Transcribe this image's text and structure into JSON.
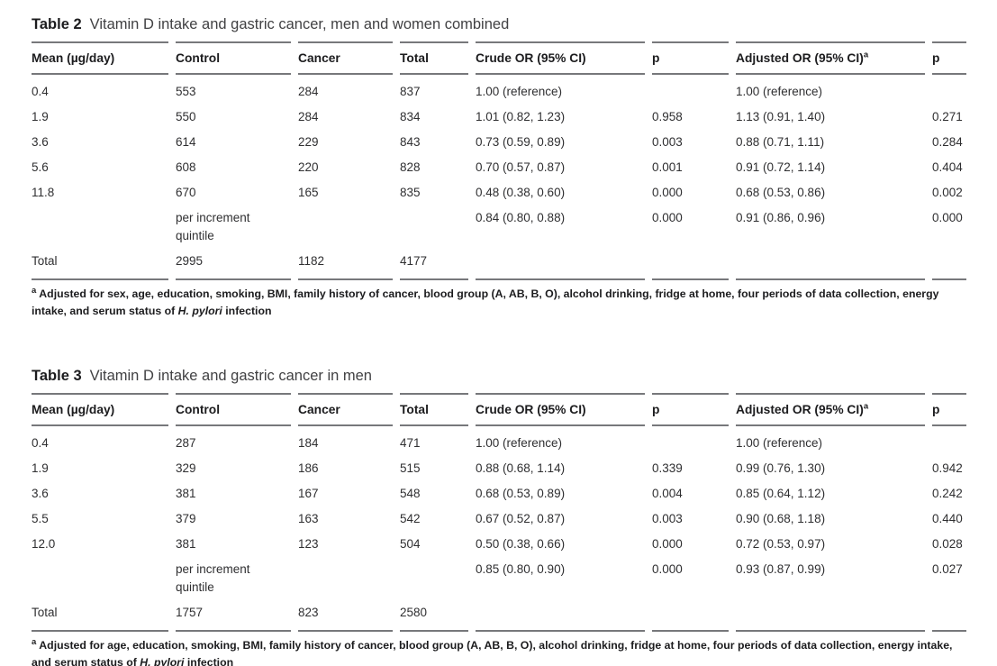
{
  "page": {
    "background": "#ffffff",
    "text_color": "#2f2f31",
    "rule_color": "#77787b"
  },
  "tables": [
    {
      "label": "Table 2",
      "caption": "Vitamin D intake and gastric cancer, men and women combined",
      "columns": [
        "Mean (µg/day)",
        "Control",
        "Cancer",
        "Total",
        "Crude OR (95% CI)",
        "p",
        "Adjusted OR (95% CI)",
        "p"
      ],
      "adjusted_or_superscript": "a",
      "rows": [
        [
          "0.4",
          "553",
          "284",
          "837",
          "1.00 (reference)",
          "",
          "1.00 (reference)",
          ""
        ],
        [
          "1.9",
          "550",
          "284",
          "834",
          "1.01 (0.82, 1.23)",
          "0.958",
          "1.13 (0.91, 1.40)",
          "0.271"
        ],
        [
          "3.6",
          "614",
          "229",
          "843",
          "0.73 (0.59, 0.89)",
          "0.003",
          "0.88 (0.71, 1.11)",
          "0.284"
        ],
        [
          "5.6",
          "608",
          "220",
          "828",
          "0.70 (0.57, 0.87)",
          "0.001",
          "0.91 (0.72, 1.14)",
          "0.404"
        ],
        [
          "11.8",
          "670",
          "165",
          "835",
          "0.48 (0.38, 0.60)",
          "0.000",
          "0.68 (0.53, 0.86)",
          "0.002"
        ],
        [
          "",
          "per increment quintile",
          "",
          "",
          "0.84 (0.80, 0.88)",
          "0.000",
          "0.91 (0.86, 0.96)",
          "0.000"
        ],
        [
          "Total",
          "2995",
          "1182",
          "4177",
          "",
          "",
          "",
          ""
        ]
      ],
      "footnote": {
        "marker": "a",
        "text_before_italic": "Adjusted for sex, age, education, smoking, BMI, family history of cancer, blood group (A, AB, B, O), alcohol drinking, fridge at home, four periods of data collection, energy intake, and serum status of ",
        "italic": "H. pylori",
        "text_after_italic": " infection"
      }
    },
    {
      "label": "Table 3",
      "caption": "Vitamin D intake and gastric cancer in men",
      "columns": [
        "Mean (µg/day)",
        "Control",
        "Cancer",
        "Total",
        "Crude OR (95% CI)",
        "p",
        "Adjusted OR (95% CI)",
        "p"
      ],
      "adjusted_or_superscript": "a",
      "rows": [
        [
          "0.4",
          "287",
          "184",
          "471",
          "1.00 (reference)",
          "",
          "1.00 (reference)",
          ""
        ],
        [
          "1.9",
          "329",
          "186",
          "515",
          "0.88 (0.68, 1.14)",
          "0.339",
          "0.99 (0.76, 1.30)",
          "0.942"
        ],
        [
          "3.6",
          "381",
          "167",
          "548",
          "0.68 (0.53, 0.89)",
          "0.004",
          "0.85 (0.64, 1.12)",
          "0.242"
        ],
        [
          "5.5",
          "379",
          "163",
          "542",
          "0.67 (0.52, 0.87)",
          "0.003",
          "0.90 (0.68, 1.18)",
          "0.440"
        ],
        [
          "12.0",
          "381",
          "123",
          "504",
          "0.50 (0.38, 0.66)",
          "0.000",
          "0.72 (0.53, 0.97)",
          "0.028"
        ],
        [
          "",
          "per increment quintile",
          "",
          "",
          "0.85 (0.80, 0.90)",
          "0.000",
          "0.93 (0.87, 0.99)",
          "0.027"
        ],
        [
          "Total",
          "1757",
          "823",
          "2580",
          "",
          "",
          "",
          ""
        ]
      ],
      "footnote": {
        "marker": "a",
        "text_before_italic": "Adjusted for age, education, smoking, BMI, family history of cancer, blood group (A, AB, B, O), alcohol drinking, fridge at home, four periods of data collection, energy intake, and serum status of ",
        "italic": "H. pylori",
        "text_after_italic": " infection"
      }
    }
  ]
}
